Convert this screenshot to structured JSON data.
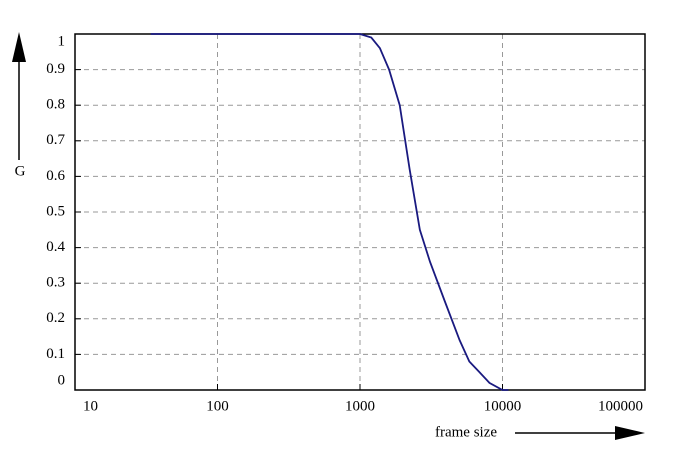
{
  "chart_data": {
    "type": "line",
    "x_label": "frame size",
    "y_label": "G",
    "x": [
      34,
      100,
      300,
      700,
      1000,
      1200,
      1380,
      1600,
      1900,
      2230,
      2630,
      3100,
      3930,
      5000,
      5850,
      6900,
      8100,
      10000,
      11000
    ],
    "series": [
      {
        "name": "G",
        "color": "#1a1a80",
        "values": [
          1,
          1,
          1,
          1,
          1,
          0.99,
          0.96,
          0.9,
          0.8,
          0.62,
          0.45,
          0.36,
          0.25,
          0.14,
          0.08,
          0.05,
          0.02,
          0,
          0
        ]
      }
    ],
    "xlim": [
      10,
      100000
    ],
    "xticks": [
      10,
      100,
      1000,
      10000,
      100000
    ],
    "xscale": "log",
    "ylim": [
      0,
      1
    ],
    "yticks": [
      0,
      0.1,
      0.2,
      0.3,
      0.4,
      0.5,
      0.6,
      0.7,
      0.8,
      0.9,
      1
    ],
    "grid": true
  }
}
